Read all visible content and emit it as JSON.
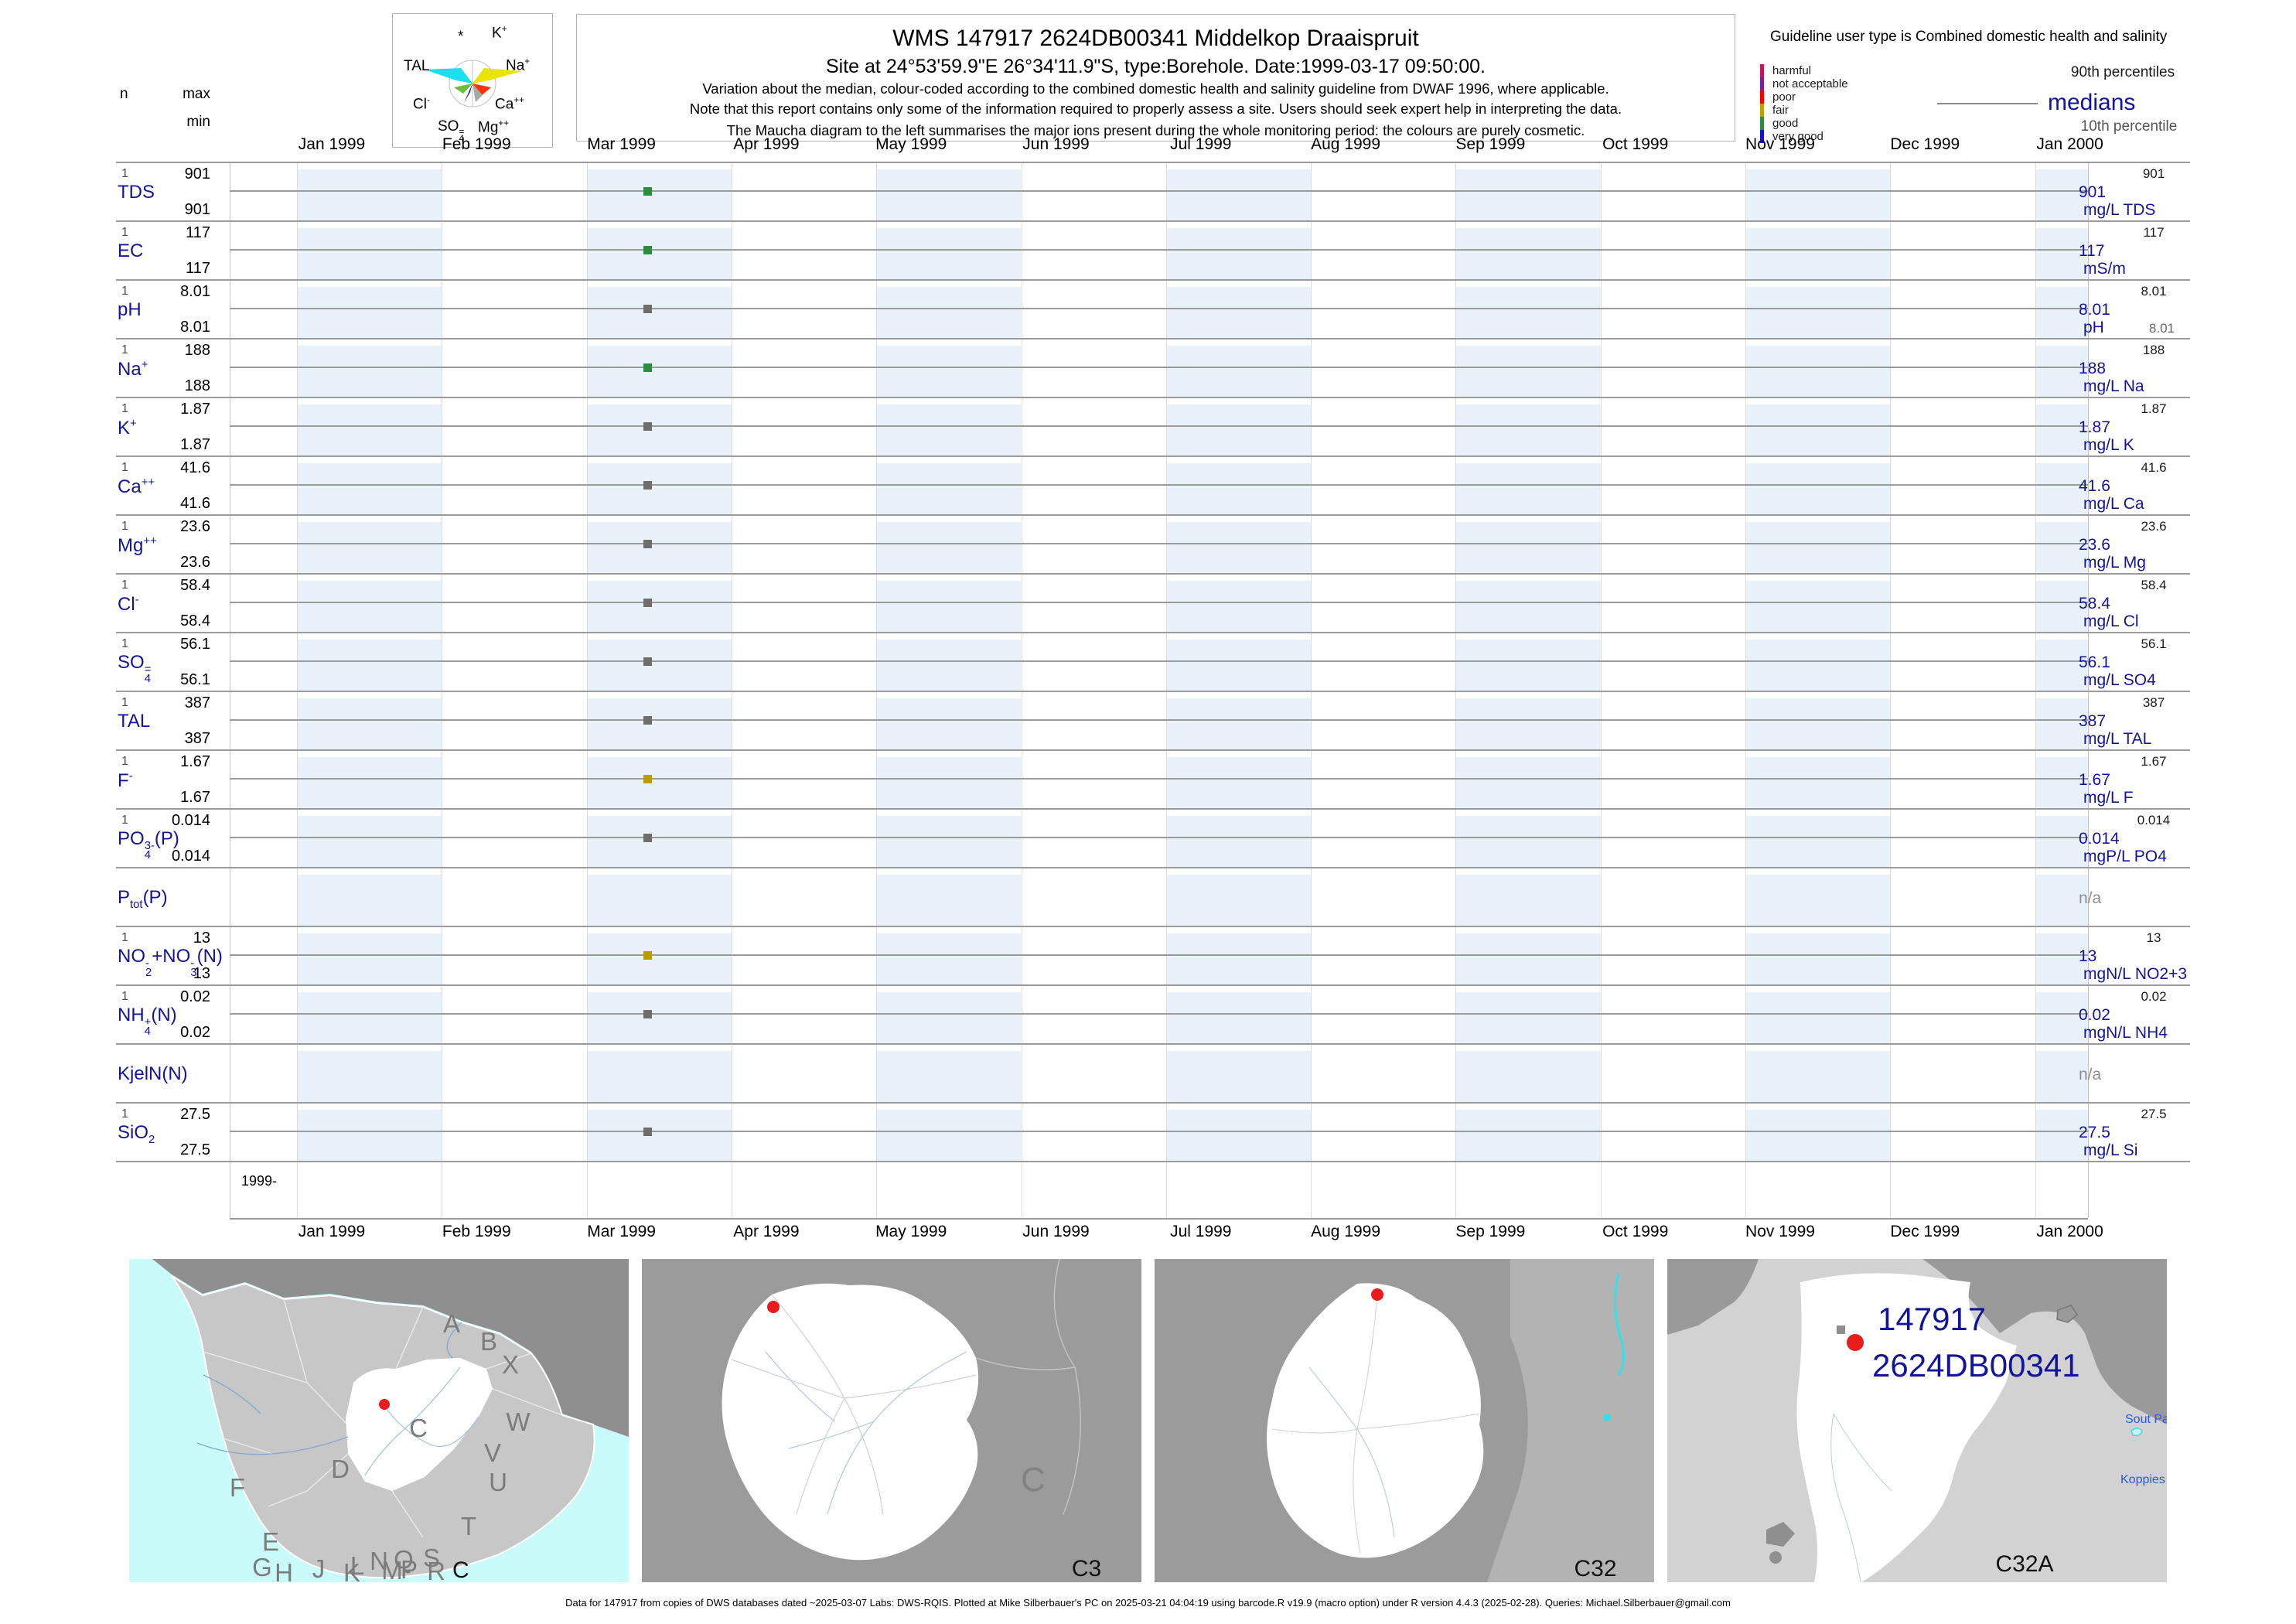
{
  "header": {
    "title": "WMS 147917 2624DB00341 Middelkop Draaispruit",
    "subtitle": "Site at 24°53'59.9\"E 26°34'11.9\"S, type:Borehole. Date:1999-03-17 09:50:00.",
    "note1": "Variation about the median,  colour-coded according to the combined domestic health and salinity guideline from DWAF 1996, where applicable.",
    "note2": "Note that this report contains only some of the information required to properly assess a site. Users should seek expert help in interpreting the data.",
    "note3": "The Maucha diagram to the left summarises the major ions present during the whole monitoring period: the colours are purely cosmetic."
  },
  "guideline": {
    "user_type_label": "Guideline user type is Combined domestic health and salinity",
    "classes": [
      {
        "label": "harmful",
        "color": "#c2185b"
      },
      {
        "label": "not acceptable",
        "color": "#7b1fa2"
      },
      {
        "label": "poor",
        "color": "#fa0000"
      },
      {
        "label": "fair",
        "color": "#c0a000"
      },
      {
        "label": "good",
        "color": "#2f8b3f"
      },
      {
        "label": "very good",
        "color": "#1212cc"
      }
    ],
    "p90_label": "90th percentiles",
    "median_label": "medians",
    "p10_label": "10th percentile"
  },
  "stats_header": {
    "n": "n",
    "max": "max",
    "min": "min"
  },
  "maucha": {
    "ions": [
      "*",
      "K^+^",
      "TAL",
      "Na^+^",
      "Cl^-^",
      "Ca^++^",
      "SO~4|=~",
      "Mg^++^"
    ]
  },
  "axis": {
    "months": [
      "Jan 1999",
      "Feb 1999",
      "Mar 1999",
      "Apr 1999",
      "May 1999",
      "Jun 1999",
      "Jul 1999",
      "Aug 1999",
      "Sep 1999",
      "Oct 1999",
      "Nov 1999",
      "Dec 1999",
      "Jan 2000"
    ],
    "period_label": "1999-"
  },
  "marker_colors": {
    "good": "#2f8b3f",
    "fair": "#b89d00",
    "unclassified": "#6e6e6e"
  },
  "rows": [
    {
      "name": "TDS",
      "n": "1",
      "max": "901",
      "min": "901",
      "p90": "901",
      "median": "901",
      "unit": "mg/L TDS",
      "class": "good"
    },
    {
      "name": "EC",
      "n": "1",
      "max": "117",
      "min": "117",
      "p90": "117",
      "median": "117",
      "unit": "mS/m",
      "class": "good"
    },
    {
      "name": "pH",
      "n": "1",
      "max": "8.01",
      "min": "8.01",
      "p90": "8.01",
      "median": "8.01",
      "unit": "pH",
      "p10": "8.01",
      "class": "unclassified"
    },
    {
      "name": "Na^+^",
      "n": "1",
      "max": "188",
      "min": "188",
      "p90": "188",
      "median": "188",
      "unit": "mg/L Na",
      "class": "good"
    },
    {
      "name": "K^+^",
      "n": "1",
      "max": "1.87",
      "min": "1.87",
      "p90": "1.87",
      "median": "1.87",
      "unit": "mg/L K",
      "class": "unclassified"
    },
    {
      "name": "Ca^++^",
      "n": "1",
      "max": "41.6",
      "min": "41.6",
      "p90": "41.6",
      "median": "41.6",
      "unit": "mg/L Ca",
      "class": "unclassified"
    },
    {
      "name": "Mg^++^",
      "n": "1",
      "max": "23.6",
      "min": "23.6",
      "p90": "23.6",
      "median": "23.6",
      "unit": "mg/L Mg",
      "class": "unclassified"
    },
    {
      "name": "Cl^-^",
      "n": "1",
      "max": "58.4",
      "min": "58.4",
      "p90": "58.4",
      "median": "58.4",
      "unit": "mg/L Cl",
      "class": "unclassified"
    },
    {
      "name": "SO~4|=~",
      "n": "1",
      "max": "56.1",
      "min": "56.1",
      "p90": "56.1",
      "median": "56.1",
      "unit": "mg/L SO4",
      "class": "unclassified"
    },
    {
      "name": "TAL",
      "n": "1",
      "max": "387",
      "min": "387",
      "p90": "387",
      "median": "387",
      "unit": "mg/L TAL",
      "class": "unclassified"
    },
    {
      "name": "F^-^",
      "n": "1",
      "max": "1.67",
      "min": "1.67",
      "p90": "1.67",
      "median": "1.67",
      "unit": "mg/L F",
      "class": "fair"
    },
    {
      "name": "PO~4|3-~(P)",
      "n": "1",
      "max": "0.014",
      "min": "0.014",
      "p90": "0.014",
      "median": "0.014",
      "unit": "mgP/L PO4",
      "class": "unclassified"
    },
    {
      "name": "P_tot_(P)",
      "n": null,
      "max": null,
      "min": null,
      "p90": null,
      "median": null,
      "unit": null,
      "na": "n/a",
      "class": null
    },
    {
      "name": "NO~2|-~+NO~3|-~(N)",
      "n": "1",
      "max": "13",
      "min": "13",
      "p90": "13",
      "median": "13",
      "unit": "mgN/L NO2+3",
      "class": "fair"
    },
    {
      "name": "NH~4|+~(N)",
      "n": "1",
      "max": "0.02",
      "min": "0.02",
      "p90": "0.02",
      "median": "0.02",
      "unit": "mgN/L NH4",
      "class": "unclassified"
    },
    {
      "name": "KjelN(N)",
      "n": null,
      "max": null,
      "min": null,
      "p90": null,
      "median": null,
      "unit": null,
      "na": "n/a",
      "class": null
    },
    {
      "name": "SiO_2_",
      "n": "1",
      "max": "27.5",
      "min": "27.5",
      "p90": "27.5",
      "median": "27.5",
      "unit": "mg/L Si",
      "class": "unclassified"
    }
  ],
  "maps": {
    "panels": [
      {
        "code": "C"
      },
      {
        "code": "C3"
      },
      {
        "code": "C32"
      },
      {
        "code": "C32A"
      }
    ],
    "region_letters": [
      "A",
      "B",
      "X",
      "W",
      "V",
      "U",
      "T",
      "S",
      "R",
      "Q",
      "P",
      "N",
      "M",
      "L",
      "K",
      "J",
      "H",
      "G",
      "E",
      "F",
      "D",
      "C"
    ],
    "site_ids": [
      "147917",
      "2624DB00341"
    ],
    "place_labels": [
      "Sout Pa",
      "Koppies"
    ]
  },
  "footer": {
    "text": "Data for 147917 from copies of DWS databases dated ~2025-03-07 Labs: DWS-RQIS. Plotted at Mike Silberbauer's PC on 2025-03-21 04:04:19 using barcode.R v19.9 (macro option) under R version 4.4.3 (2025-02-28). Queries: Michael.Silberbauer@gmail.com"
  },
  "chart_data": {
    "type": "scatter",
    "title": "WMS 147917 2624DB00341 Middelkop Draaispruit",
    "site": {
      "id": "147917",
      "station": "2624DB00341",
      "name": "Middelkop Draaispruit",
      "location": "24°53'59.9\"E 26°34'11.9\"S",
      "site_type": "Borehole"
    },
    "sample_datetime": "1999-03-17 09:50:00",
    "x_axis": {
      "ticks": [
        "Jan 1999",
        "Feb 1999",
        "Mar 1999",
        "Apr 1999",
        "May 1999",
        "Jun 1999",
        "Jul 1999",
        "Aug 1999",
        "Sep 1999",
        "Oct 1999",
        "Nov 1999",
        "Dec 1999",
        "Jan 2000"
      ],
      "range": [
        "Jan 1999",
        "Jan 2000"
      ]
    },
    "legend_position": "top-right",
    "grid": true,
    "series": [
      {
        "param": "TDS",
        "unit": "mg/L TDS",
        "n": 1,
        "min": 901,
        "max": 901,
        "median": 901,
        "p90": 901,
        "guideline_class": "good",
        "points": [
          {
            "x": "1999-03-17",
            "y": 901
          }
        ]
      },
      {
        "param": "EC",
        "unit": "mS/m",
        "n": 1,
        "min": 117,
        "max": 117,
        "median": 117,
        "p90": 117,
        "guideline_class": "good",
        "points": [
          {
            "x": "1999-03-17",
            "y": 117
          }
        ]
      },
      {
        "param": "pH",
        "unit": "pH",
        "n": 1,
        "min": 8.01,
        "max": 8.01,
        "median": 8.01,
        "p90": 8.01,
        "p10": 8.01,
        "guideline_class": "unclassified",
        "points": [
          {
            "x": "1999-03-17",
            "y": 8.01
          }
        ]
      },
      {
        "param": "Na",
        "unit": "mg/L Na",
        "n": 1,
        "min": 188,
        "max": 188,
        "median": 188,
        "p90": 188,
        "guideline_class": "good",
        "points": [
          {
            "x": "1999-03-17",
            "y": 188
          }
        ]
      },
      {
        "param": "K",
        "unit": "mg/L K",
        "n": 1,
        "min": 1.87,
        "max": 1.87,
        "median": 1.87,
        "p90": 1.87,
        "guideline_class": "unclassified",
        "points": [
          {
            "x": "1999-03-17",
            "y": 1.87
          }
        ]
      },
      {
        "param": "Ca",
        "unit": "mg/L Ca",
        "n": 1,
        "min": 41.6,
        "max": 41.6,
        "median": 41.6,
        "p90": 41.6,
        "guideline_class": "unclassified",
        "points": [
          {
            "x": "1999-03-17",
            "y": 41.6
          }
        ]
      },
      {
        "param": "Mg",
        "unit": "mg/L Mg",
        "n": 1,
        "min": 23.6,
        "max": 23.6,
        "median": 23.6,
        "p90": 23.6,
        "guideline_class": "unclassified",
        "points": [
          {
            "x": "1999-03-17",
            "y": 23.6
          }
        ]
      },
      {
        "param": "Cl",
        "unit": "mg/L Cl",
        "n": 1,
        "min": 58.4,
        "max": 58.4,
        "median": 58.4,
        "p90": 58.4,
        "guideline_class": "unclassified",
        "points": [
          {
            "x": "1999-03-17",
            "y": 58.4
          }
        ]
      },
      {
        "param": "SO4",
        "unit": "mg/L SO4",
        "n": 1,
        "min": 56.1,
        "max": 56.1,
        "median": 56.1,
        "p90": 56.1,
        "guideline_class": "unclassified",
        "points": [
          {
            "x": "1999-03-17",
            "y": 56.1
          }
        ]
      },
      {
        "param": "TAL",
        "unit": "mg/L TAL",
        "n": 1,
        "min": 387,
        "max": 387,
        "median": 387,
        "p90": 387,
        "guideline_class": "unclassified",
        "points": [
          {
            "x": "1999-03-17",
            "y": 387
          }
        ]
      },
      {
        "param": "F",
        "unit": "mg/L F",
        "n": 1,
        "min": 1.67,
        "max": 1.67,
        "median": 1.67,
        "p90": 1.67,
        "guideline_class": "fair",
        "points": [
          {
            "x": "1999-03-17",
            "y": 1.67
          }
        ]
      },
      {
        "param": "PO4(P)",
        "unit": "mgP/L PO4",
        "n": 1,
        "min": 0.014,
        "max": 0.014,
        "median": 0.014,
        "p90": 0.014,
        "guideline_class": "unclassified",
        "points": [
          {
            "x": "1999-03-17",
            "y": 0.014
          }
        ]
      },
      {
        "param": "Ptot(P)",
        "unit": null,
        "n": 0,
        "points": [],
        "note": "n/a"
      },
      {
        "param": "NO2+NO3(N)",
        "unit": "mgN/L NO2+3",
        "n": 1,
        "min": 13,
        "max": 13,
        "median": 13,
        "p90": 13,
        "guideline_class": "fair",
        "points": [
          {
            "x": "1999-03-17",
            "y": 13
          }
        ]
      },
      {
        "param": "NH4(N)",
        "unit": "mgN/L NH4",
        "n": 1,
        "min": 0.02,
        "max": 0.02,
        "median": 0.02,
        "p90": 0.02,
        "guideline_class": "unclassified",
        "points": [
          {
            "x": "1999-03-17",
            "y": 0.02
          }
        ]
      },
      {
        "param": "KjelN(N)",
        "unit": null,
        "n": 0,
        "points": [],
        "note": "n/a"
      },
      {
        "param": "SiO2",
        "unit": "mg/L Si",
        "n": 1,
        "min": 27.5,
        "max": 27.5,
        "median": 27.5,
        "p90": 27.5,
        "guideline_class": "unclassified",
        "points": [
          {
            "x": "1999-03-17",
            "y": 27.5
          }
        ]
      }
    ]
  }
}
